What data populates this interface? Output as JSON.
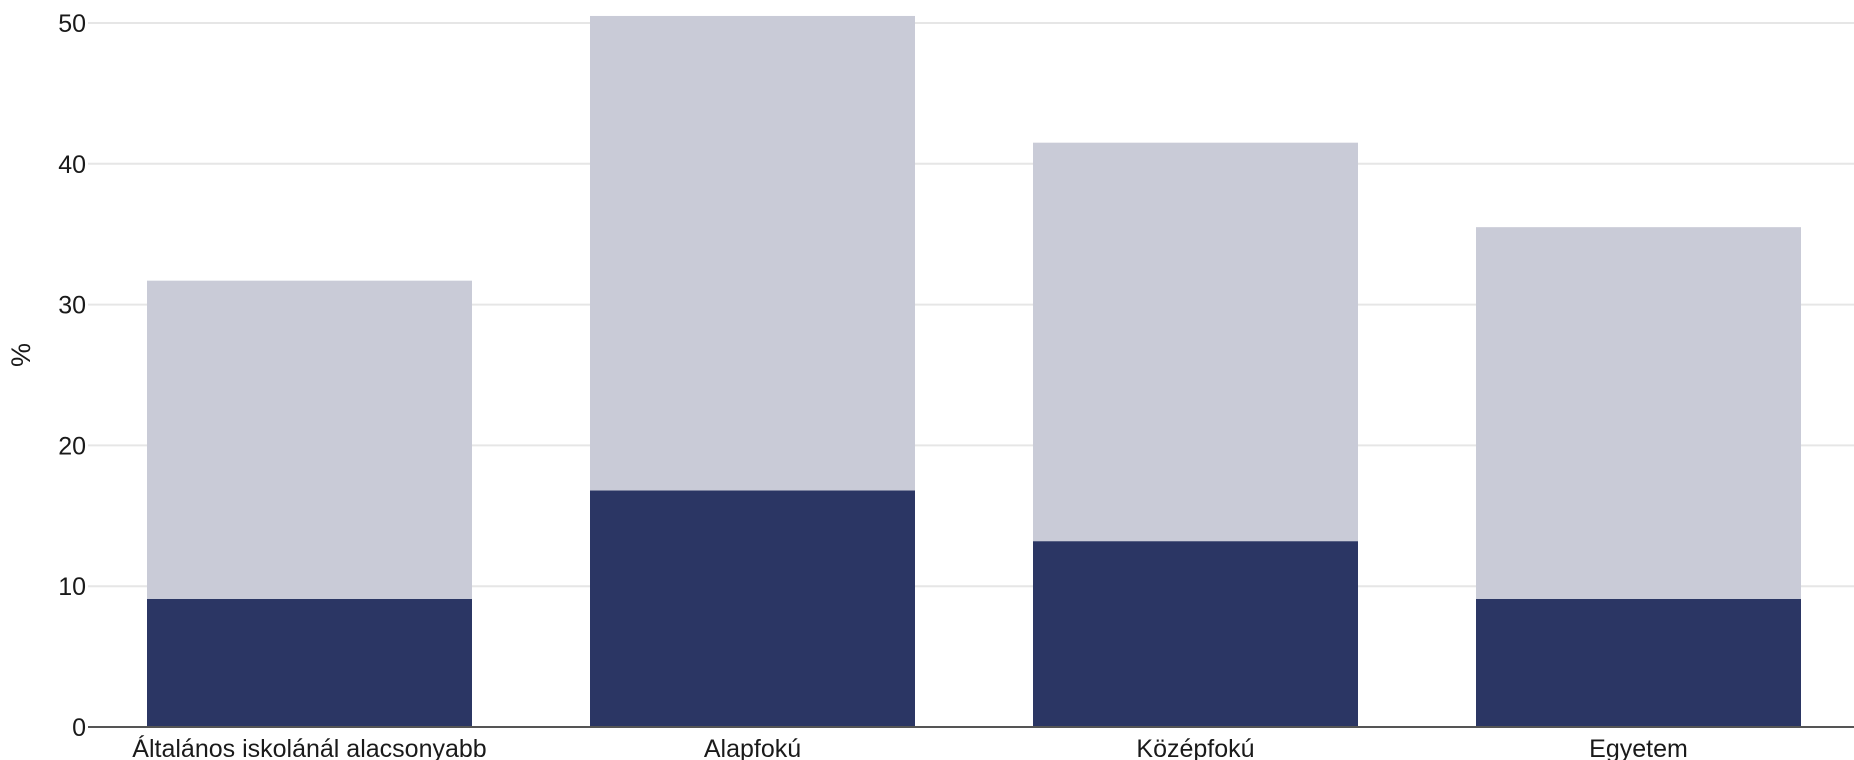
{
  "chart_data": {
    "type": "bar",
    "stacked": true,
    "categories": [
      "Általános iskolánál alacsonyabb",
      "Alapfokú",
      "Középfokú",
      "Egyetem"
    ],
    "series": [
      {
        "values": [
          9.1,
          16.8,
          13.2,
          9.1
        ],
        "color": "#2b3664"
      },
      {
        "values": [
          22.6,
          33.7,
          28.3,
          26.4
        ],
        "color": "#c9cbd7"
      }
    ],
    "totals": [
      31.7,
      50.5,
      41.5,
      35.5
    ],
    "ylabel": "%",
    "xlabel": "",
    "ylim": [
      0,
      50
    ],
    "yticks": [
      0,
      10,
      20,
      30,
      40,
      50
    ],
    "grid": true,
    "colors": {
      "grid": "#e6e6e6",
      "axis": "#555555"
    }
  }
}
